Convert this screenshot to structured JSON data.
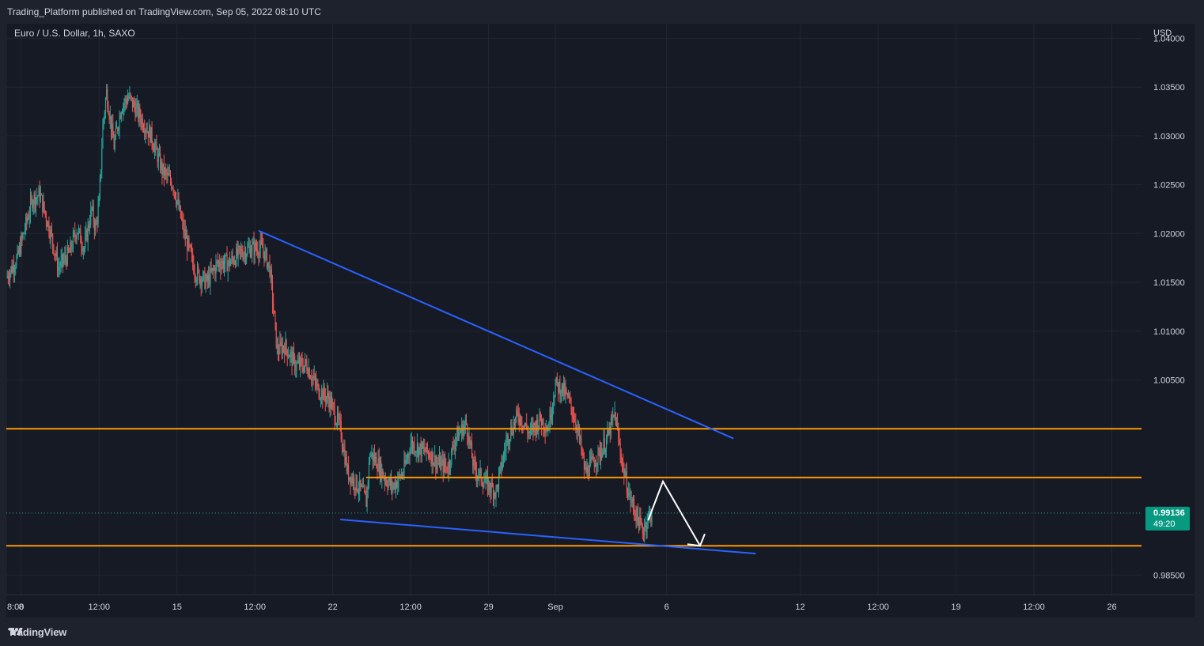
{
  "header": {
    "publisher_text": "Trading_Platform published on TradingView.com, Sep 05, 2022 08:10 UTC"
  },
  "footer": {
    "brand": "TradingView"
  },
  "symbol": {
    "title": "Euro / U.S. Dollar, 1h, SAXO",
    "currency": "USD"
  },
  "current_price": {
    "value": "0.99136",
    "countdown": "49:20",
    "color": "#089981"
  },
  "colors": {
    "up": "#26a69a",
    "down": "#ef5350",
    "level_line": "#ff9800",
    "trend_line": "#2962ff",
    "arrow": "#ffffff",
    "background": "#161a25"
  },
  "chart_data": {
    "type": "candlestick",
    "title": "Euro / U.S. Dollar, 1h, SAXO",
    "ylim": [
      0.983,
      1.0415
    ],
    "y_ticks": [
      "1.04000",
      "1.03500",
      "1.03000",
      "1.02500",
      "1.02000",
      "1.01500",
      "1.01000",
      "1.00500",
      "0.98500"
    ],
    "y_tick_values": [
      1.04,
      1.035,
      1.03,
      1.025,
      1.02,
      1.015,
      1.01,
      1.005,
      0.985
    ],
    "x_range": [
      "Aug 7 08:00",
      "Sep 27 08:00"
    ],
    "x_ticks": [
      {
        "label": "8:00",
        "t": "Aug 7 08:00"
      },
      {
        "label": "8",
        "t": "Aug 8"
      },
      {
        "label": "12:00",
        "t": "Aug 11 12:00"
      },
      {
        "label": "15",
        "t": "Aug 15"
      },
      {
        "label": "12:00",
        "t": "Aug 18 12:00"
      },
      {
        "label": "22",
        "t": "Aug 22"
      },
      {
        "label": "12:00",
        "t": "Aug 25 12:00"
      },
      {
        "label": "29",
        "t": "Aug 29"
      },
      {
        "label": "Sep",
        "t": "Sep 1"
      },
      {
        "label": "6",
        "t": "Sep 6"
      },
      {
        "label": "12",
        "t": "Sep 12"
      },
      {
        "label": "12:00",
        "t": "Sep 15 12:00"
      },
      {
        "label": "19",
        "t": "Sep 19"
      },
      {
        "label": "12:00",
        "t": "Sep 22 12:00"
      },
      {
        "label": "26",
        "t": "Sep 26"
      }
    ],
    "price_path": [
      [
        "Aug 7 08:00",
        1.0155
      ],
      [
        "Aug 7 20:00",
        1.0175
      ],
      [
        "Aug 8 12:00",
        1.0235
      ],
      [
        "Aug 8 20:00",
        1.024
      ],
      [
        "Aug 9 08:00",
        1.02
      ],
      [
        "Aug 9 16:00",
        1.0165
      ],
      [
        "Aug 10 04:00",
        1.018
      ],
      [
        "Aug 10 12:00",
        1.0205
      ],
      [
        "Aug 10 20:00",
        1.0185
      ],
      [
        "Aug 11 04:00",
        1.0225
      ],
      [
        "Aug 11 08:00",
        1.0205
      ],
      [
        "Aug 11 12:00",
        1.023
      ],
      [
        "Aug 11 16:00",
        1.031
      ],
      [
        "Aug 11 20:00",
        1.0345
      ],
      [
        "Aug 12 04:00",
        1.029
      ],
      [
        "Aug 12 08:00",
        1.031
      ],
      [
        "Aug 12 12:00",
        1.033
      ],
      [
        "Aug 12 20:00",
        1.034
      ],
      [
        "Aug 13 08:00",
        1.032
      ],
      [
        "Aug 13 20:00",
        1.03
      ],
      [
        "Aug 14 08:00",
        1.0265
      ],
      [
        "Aug 14 20:00",
        1.025
      ],
      [
        "Aug 15 08:00",
        1.02
      ],
      [
        "Aug 15 20:00",
        1.016
      ],
      [
        "Aug 16 08:00",
        1.015
      ],
      [
        "Aug 16 20:00",
        1.017
      ],
      [
        "Aug 17 08:00",
        1.017
      ],
      [
        "Aug 17 20:00",
        1.018
      ],
      [
        "Aug 18 08:00",
        1.0185
      ],
      [
        "Aug 18 20:00",
        1.0185
      ],
      [
        "Aug 19 04:00",
        1.0165
      ],
      [
        "Aug 19 12:00",
        1.008
      ],
      [
        "Aug 19 20:00",
        1.0085
      ],
      [
        "Aug 20 08:00",
        1.0065
      ],
      [
        "Aug 20 20:00",
        1.0065
      ],
      [
        "Aug 21 08:00",
        1.004
      ],
      [
        "Aug 21 20:00",
        1.003
      ],
      [
        "Aug 22 08:00",
        1.0
      ],
      [
        "Aug 22 16:00",
        0.9955
      ],
      [
        "Aug 23 00:00",
        0.9945
      ],
      [
        "Aug 23 08:00",
        0.9935
      ],
      [
        "Aug 23 12:00",
        0.9925
      ],
      [
        "Aug 23 16:00",
        0.9975
      ],
      [
        "Aug 24 00:00",
        0.9965
      ],
      [
        "Aug 24 08:00",
        0.995
      ],
      [
        "Aug 24 16:00",
        0.994
      ],
      [
        "Aug 25 04:00",
        0.9955
      ],
      [
        "Aug 25 12:00",
        0.9985
      ],
      [
        "Aug 25 20:00",
        0.998
      ],
      [
        "Aug 26 08:00",
        0.9975
      ],
      [
        "Aug 26 16:00",
        0.9965
      ],
      [
        "Aug 27 04:00",
        0.996
      ],
      [
        "Aug 27 12:00",
        0.999
      ],
      [
        "Aug 28 00:00",
        1.0005
      ],
      [
        "Aug 28 08:00",
        0.996
      ],
      [
        "Aug 28 20:00",
        0.9945
      ],
      [
        "Aug 29 08:00",
        0.9935
      ],
      [
        "Aug 29 20:00",
        0.999
      ],
      [
        "Aug 30 08:00",
        1.0015
      ],
      [
        "Aug 30 20:00",
        0.9995
      ],
      [
        "Aug 31 08:00",
        1.001
      ],
      [
        "Aug 31 16:00",
        1.0
      ],
      [
        "Sep 1 00:00",
        1.0045
      ],
      [
        "Sep 1 08:00",
        1.004
      ],
      [
        "Sep 1 16:00",
        1.0025
      ],
      [
        "Sep 2 00:00",
        1.0
      ],
      [
        "Sep 2 08:00",
        0.9955
      ],
      [
        "Sep 2 16:00",
        0.9965
      ],
      [
        "Sep 3 00:00",
        0.9975
      ],
      [
        "Sep 3 08:00",
        0.999
      ],
      [
        "Sep 3 16:00",
        1.0015
      ],
      [
        "Sep 4 00:00",
        0.9965
      ],
      [
        "Sep 4 08:00",
        0.993
      ],
      [
        "Sep 4 16:00",
        0.991
      ],
      [
        "Sep 4 22:00",
        0.9895
      ],
      [
        "Sep 5 04:00",
        0.991
      ],
      [
        "Sep 5 08:00",
        0.99136
      ]
    ],
    "horizontal_levels": [
      {
        "price": 1.0,
        "label": "1.00000"
      },
      {
        "price": 0.995,
        "label": "0.99500",
        "start": "Aug 23 12:00"
      },
      {
        "price": 0.988,
        "label": "0.98800"
      }
    ],
    "trend_lines": [
      {
        "from": [
          "Aug 18 16:00",
          1.0203
        ],
        "to": [
          "Sep 9 00:00",
          0.999
        ]
      },
      {
        "from": [
          "Aug 22 08:00",
          0.9907
        ],
        "to": [
          "Sep 10 00:00",
          0.9872
        ]
      }
    ],
    "projection_arrow": [
      [
        "Sep 5 04:00",
        0.9906
      ],
      [
        "Sep 5 20:00",
        0.9946
      ],
      [
        "Sep 7 12:00",
        0.988
      ]
    ]
  }
}
